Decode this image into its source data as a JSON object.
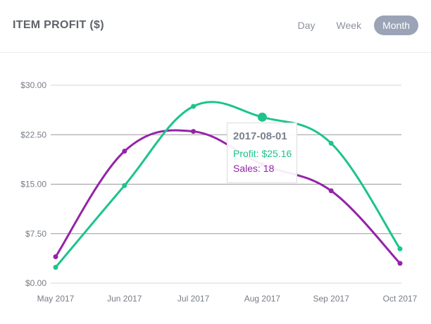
{
  "header": {
    "title": "ITEM PROFIT ($)",
    "tabs": [
      {
        "label": "Day",
        "active": false
      },
      {
        "label": "Week",
        "active": false
      },
      {
        "label": "Month",
        "active": true
      }
    ]
  },
  "chart_data": {
    "type": "line",
    "title": "ITEM PROFIT ($)",
    "categories": [
      "May 2017",
      "Jun 2017",
      "Jul 2017",
      "Aug 2017",
      "Sep 2017",
      "Oct 2017"
    ],
    "ylim": [
      0,
      30
    ],
    "yticks": [
      "$0.00",
      "$7.50",
      "$15.00",
      "$22.50",
      "$30.00"
    ],
    "grid": true,
    "series": [
      {
        "name": "Profit",
        "color": "#1dc48a",
        "values": [
          2.4,
          14.8,
          26.8,
          25.16,
          21.2,
          5.2
        ]
      },
      {
        "name": "Sales",
        "color": "#9423a8",
        "values": [
          4.0,
          20.0,
          23.0,
          18.0,
          14.0,
          3.0
        ]
      }
    ],
    "tooltip": {
      "date": "2017-08-01",
      "profit_text": "Profit: $25.16",
      "sales_text": "Sales: 18",
      "index": 3
    }
  }
}
